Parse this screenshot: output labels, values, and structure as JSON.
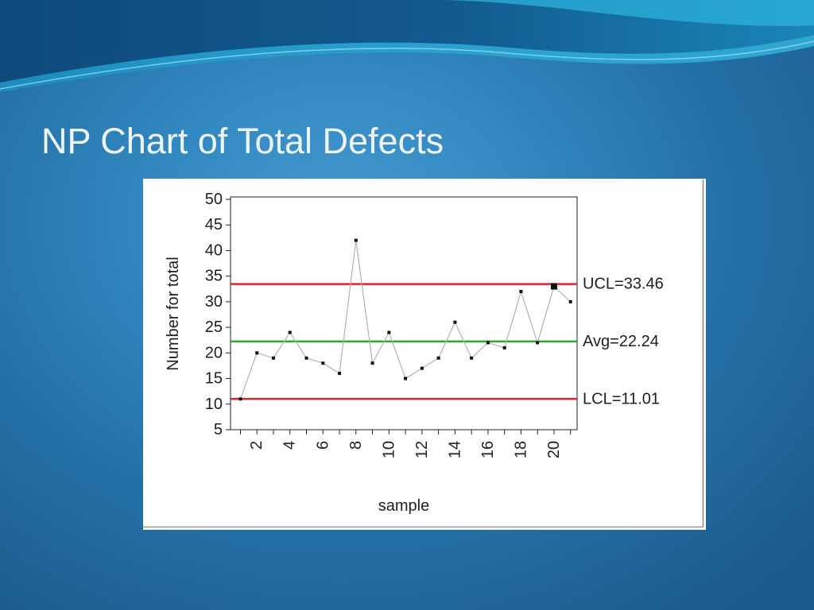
{
  "slide": {
    "title": "NP Chart of Total Defects"
  },
  "chart_data": {
    "type": "line",
    "xlabel": "sample",
    "ylabel": "Number for total",
    "x": [
      1,
      2,
      3,
      4,
      5,
      6,
      7,
      8,
      9,
      10,
      11,
      12,
      13,
      14,
      15,
      16,
      17,
      18,
      19,
      20,
      21
    ],
    "x_ticks": [
      2,
      4,
      6,
      8,
      10,
      12,
      14,
      16,
      18,
      20
    ],
    "y_ticks": [
      5,
      10,
      15,
      20,
      25,
      30,
      35,
      40,
      45,
      50
    ],
    "xlim": [
      0.4,
      21.4
    ],
    "ylim": [
      5,
      50
    ],
    "grid": false,
    "series": [
      {
        "values": [
          11,
          20,
          19,
          24,
          19,
          18,
          16,
          42,
          18,
          24,
          15,
          17,
          19,
          26,
          19,
          22,
          21,
          32,
          22,
          33,
          30
        ],
        "color": "#b3b3b3",
        "marker_color": "#111111"
      }
    ],
    "control_lines": [
      {
        "label": "UCL=33.46",
        "value": 33.46,
        "color": "#e3232d"
      },
      {
        "label": "Avg=22.24",
        "value": 22.24,
        "color": "#22b022"
      },
      {
        "label": "LCL=11.01",
        "value": 11.01,
        "color": "#e3232d"
      }
    ],
    "highlighted_samples": [
      20
    ]
  }
}
